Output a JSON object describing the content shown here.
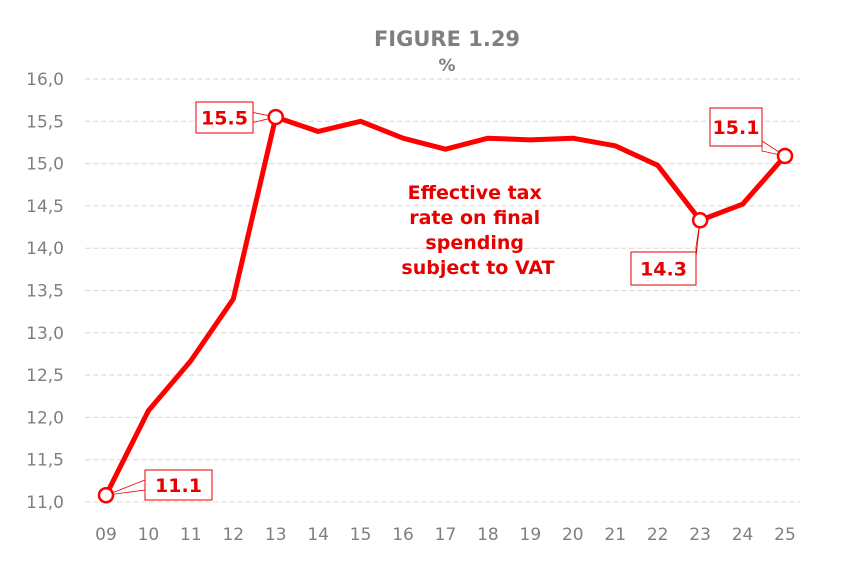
{
  "chart_data": {
    "type": "line",
    "title": "FIGURE 1.29",
    "subtitle": "%",
    "xlabel": "",
    "ylabel": "",
    "categories": [
      "09",
      "10",
      "11",
      "12",
      "13",
      "14",
      "15",
      "16",
      "17",
      "18",
      "19",
      "20",
      "21",
      "22",
      "23",
      "24",
      "25"
    ],
    "series": [
      {
        "name": "Effective tax rate on final spending subject to VAT",
        "name_lines": [
          "Effective tax",
          "rate on final",
          "spending",
          "subject to VAT"
        ],
        "values": [
          11.08,
          12.08,
          12.67,
          13.4,
          15.55,
          15.38,
          15.5,
          15.3,
          15.17,
          15.3,
          15.28,
          15.3,
          15.21,
          14.98,
          14.33,
          14.52,
          15.09
        ],
        "color": "#ff0000"
      }
    ],
    "data_labels": [
      {
        "category": "09",
        "text": "11.1"
      },
      {
        "category": "13",
        "text": "15.5"
      },
      {
        "category": "23",
        "text": "14.3"
      },
      {
        "category": "25",
        "text": "15.1"
      }
    ],
    "ylim": [
      11.0,
      16.0
    ],
    "yticks": [
      "11,0",
      "11,5",
      "12,0",
      "12,5",
      "13,0",
      "13,5",
      "14,0",
      "14,5",
      "15,0",
      "15,5",
      "16,0"
    ],
    "grid": true,
    "grid_style": "dashed-horizontal",
    "legend": "inline-annotation"
  }
}
